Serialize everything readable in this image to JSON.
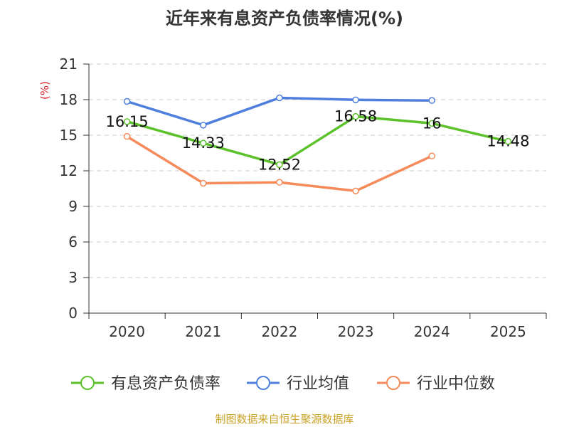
{
  "chart_data": {
    "type": "line",
    "title": "近年来有息资产负债率情况(%)",
    "ylabel": "(%)",
    "xlabel": "",
    "categories": [
      "2020",
      "2021",
      "2022",
      "2023",
      "2024",
      "2025"
    ],
    "ylim": [
      0,
      21
    ],
    "yticks": [
      0,
      3,
      6,
      9,
      12,
      15,
      18,
      21
    ],
    "grid": true,
    "legend_position": "bottom",
    "series": [
      {
        "name": "有息资产负债率",
        "color": "#5cc22a",
        "values": [
          16.15,
          14.33,
          12.52,
          16.58,
          16,
          14.48
        ],
        "labels": [
          "16.15",
          "14.33",
          "12.52",
          "16.58",
          "16",
          "14.48"
        ]
      },
      {
        "name": "行业均值",
        "color": "#4f7fdc",
        "values": [
          17.85,
          15.85,
          18.15,
          17.98,
          17.93,
          null
        ]
      },
      {
        "name": "行业中位数",
        "color": "#f58a5b",
        "values": [
          14.9,
          10.95,
          11.03,
          10.3,
          13.25,
          null
        ]
      }
    ]
  },
  "source_text": "制图数据来自恒生聚源数据库"
}
